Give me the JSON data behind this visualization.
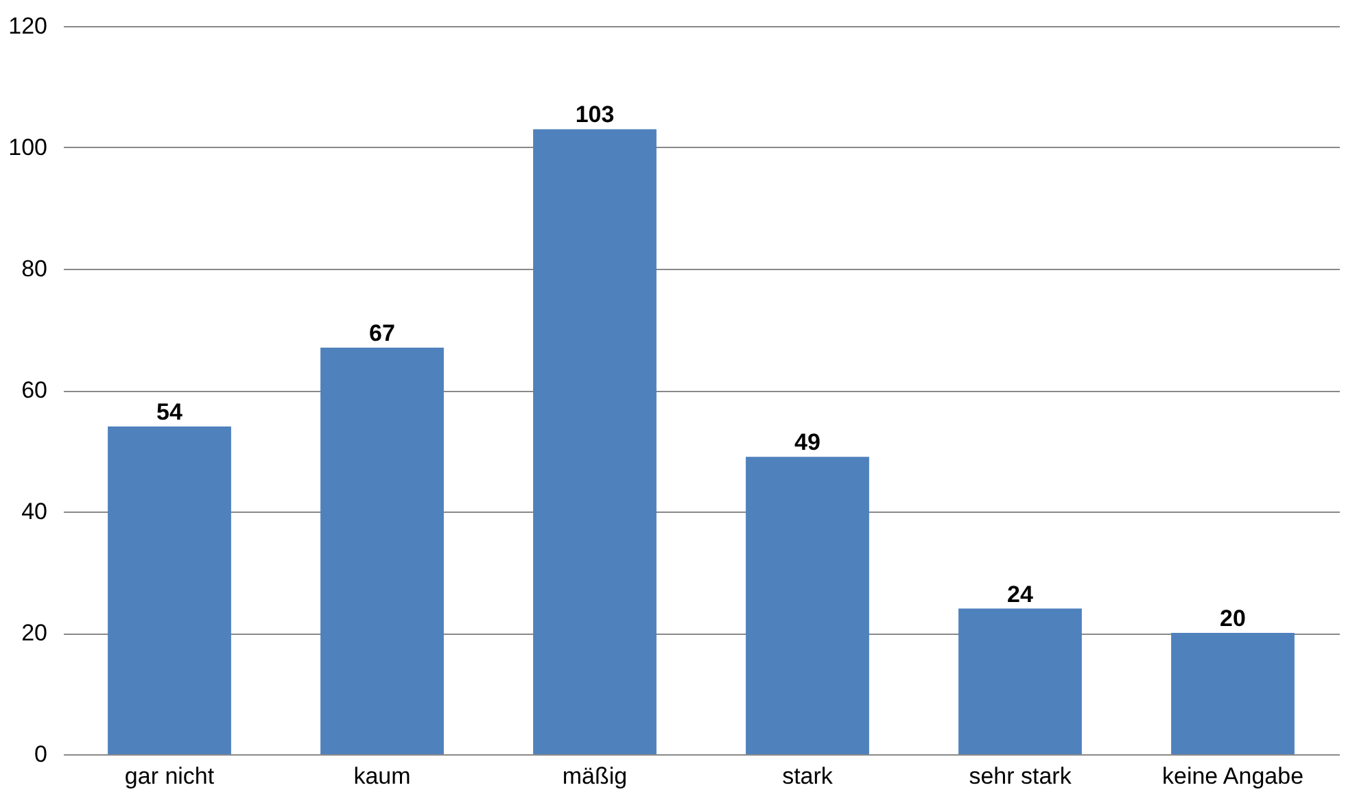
{
  "chart_data": {
    "type": "bar",
    "categories": [
      "gar nicht",
      "kaum",
      "mäßig",
      "stark",
      "sehr stark",
      "keine Angabe"
    ],
    "values": [
      54,
      67,
      103,
      49,
      24,
      20
    ],
    "color": "#4f81bd",
    "ylim": [
      0,
      120
    ],
    "yticks": [
      0,
      20,
      40,
      60,
      80,
      100,
      120
    ],
    "grid": "y",
    "data_labels": true
  }
}
